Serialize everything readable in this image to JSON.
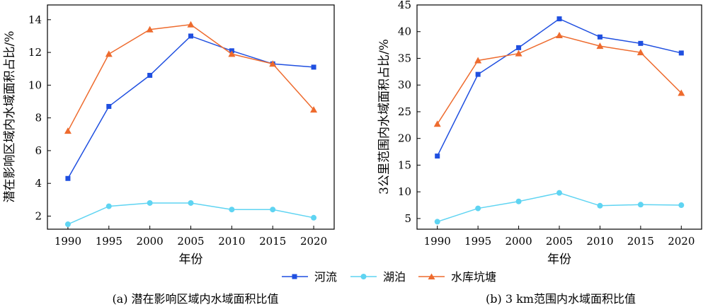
{
  "legend": [
    {
      "label": "河流",
      "color": "#1f4fe0",
      "marker": "square"
    },
    {
      "label": "湖泊",
      "color": "#5fd4f2",
      "marker": "circle"
    },
    {
      "label": "水库坑塘",
      "color": "#ee6b2e",
      "marker": "triangle"
    }
  ],
  "chart_data": [
    {
      "type": "line",
      "caption": "(a) 潜在影响区域内水域面积比值",
      "xlabel": "年份",
      "ylabel": "潜在影响区域内水域面积占比/%",
      "x": [
        1990,
        1995,
        2000,
        2005,
        2010,
        2015,
        2020
      ],
      "xlim": [
        1987.5,
        2022.5
      ],
      "ylim": [
        1.2,
        14.9
      ],
      "yticks": [
        2,
        4,
        6,
        8,
        10,
        12,
        14
      ],
      "series": [
        {
          "name": "河流",
          "color": "#1f4fe0",
          "marker": "square",
          "values": [
            4.3,
            8.7,
            10.6,
            13.0,
            12.1,
            11.3,
            11.1
          ]
        },
        {
          "name": "湖泊",
          "color": "#5fd4f2",
          "marker": "circle",
          "values": [
            1.5,
            2.6,
            2.8,
            2.8,
            2.4,
            2.4,
            1.9
          ]
        },
        {
          "name": "水库坑塘",
          "color": "#ee6b2e",
          "marker": "triangle",
          "values": [
            7.2,
            11.9,
            13.4,
            13.7,
            11.9,
            11.3,
            8.5
          ]
        }
      ]
    },
    {
      "type": "line",
      "caption": "(b) 3 km范围内水域面积比值",
      "xlabel": "年份",
      "ylabel": "3公里范围内水域面积占比/%",
      "x": [
        1990,
        1995,
        2000,
        2005,
        2010,
        2015,
        2020
      ],
      "xlim": [
        1987.5,
        2022.5
      ],
      "ylim": [
        3,
        45
      ],
      "yticks": [
        5,
        10,
        15,
        20,
        25,
        30,
        35,
        40,
        45
      ],
      "series": [
        {
          "name": "河流",
          "color": "#1f4fe0",
          "marker": "square",
          "values": [
            16.7,
            32.0,
            37.0,
            42.4,
            39.0,
            37.8,
            36.0
          ]
        },
        {
          "name": "湖泊",
          "color": "#5fd4f2",
          "marker": "circle",
          "values": [
            4.4,
            6.9,
            8.2,
            9.8,
            7.4,
            7.6,
            7.5
          ]
        },
        {
          "name": "水库坑塘",
          "color": "#ee6b2e",
          "marker": "triangle",
          "values": [
            22.7,
            34.6,
            35.9,
            39.3,
            37.3,
            36.1,
            28.5
          ]
        }
      ]
    }
  ]
}
